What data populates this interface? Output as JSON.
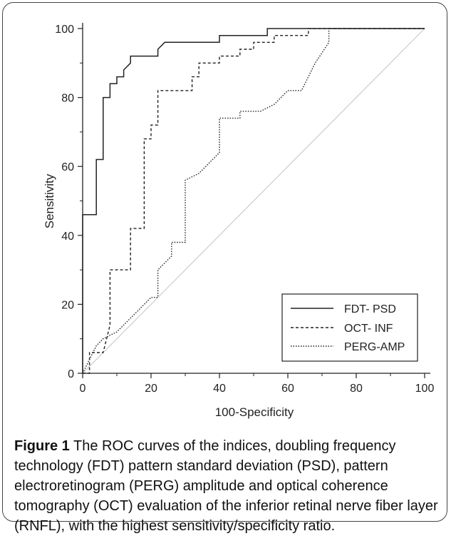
{
  "chart_data": {
    "type": "line",
    "xlabel": "100-Specificity",
    "ylabel": "Sensitivity",
    "xlim": [
      0,
      100
    ],
    "ylim": [
      0,
      100
    ],
    "xticks": [
      "0",
      "20",
      "40",
      "60",
      "80",
      "100"
    ],
    "yticks": [
      "0",
      "20",
      "40",
      "60",
      "80",
      "100"
    ],
    "legend_position": "bottom-right",
    "series": [
      {
        "name": "FDT- PSD",
        "style": "solid",
        "points": [
          [
            0,
            0
          ],
          [
            0,
            46
          ],
          [
            4,
            46
          ],
          [
            4,
            62
          ],
          [
            6,
            62
          ],
          [
            6,
            80
          ],
          [
            8,
            80
          ],
          [
            8,
            84
          ],
          [
            10,
            84
          ],
          [
            10,
            86
          ],
          [
            12,
            86
          ],
          [
            12,
            88
          ],
          [
            14,
            90
          ],
          [
            14,
            92
          ],
          [
            22,
            92
          ],
          [
            22,
            94
          ],
          [
            24,
            96
          ],
          [
            40,
            96
          ],
          [
            40,
            98
          ],
          [
            54,
            98
          ],
          [
            54,
            100
          ],
          [
            100,
            100
          ]
        ]
      },
      {
        "name": "OCT- INF",
        "style": "dashed",
        "points": [
          [
            0,
            0
          ],
          [
            2,
            0
          ],
          [
            2,
            6
          ],
          [
            6,
            6
          ],
          [
            8,
            14
          ],
          [
            8,
            30
          ],
          [
            14,
            30
          ],
          [
            14,
            42
          ],
          [
            18,
            42
          ],
          [
            18,
            68
          ],
          [
            20,
            68
          ],
          [
            20,
            72
          ],
          [
            22,
            72
          ],
          [
            22,
            82
          ],
          [
            32,
            82
          ],
          [
            32,
            86
          ],
          [
            34,
            86
          ],
          [
            34,
            90
          ],
          [
            40,
            90
          ],
          [
            40,
            92
          ],
          [
            46,
            92
          ],
          [
            46,
            94
          ],
          [
            50,
            94
          ],
          [
            50,
            96
          ],
          [
            56,
            96
          ],
          [
            56,
            98
          ],
          [
            66,
            98
          ],
          [
            66,
            100
          ],
          [
            100,
            100
          ]
        ]
      },
      {
        "name": "PERG-AMP",
        "style": "dotted",
        "points": [
          [
            0,
            0
          ],
          [
            2,
            4
          ],
          [
            4,
            8
          ],
          [
            6,
            10
          ],
          [
            10,
            12
          ],
          [
            12,
            14
          ],
          [
            14,
            16
          ],
          [
            16,
            18
          ],
          [
            18,
            20
          ],
          [
            20,
            22
          ],
          [
            22,
            22
          ],
          [
            22,
            30
          ],
          [
            26,
            34
          ],
          [
            26,
            38
          ],
          [
            30,
            38
          ],
          [
            30,
            56
          ],
          [
            34,
            58
          ],
          [
            36,
            60
          ],
          [
            38,
            62
          ],
          [
            40,
            64
          ],
          [
            40,
            74
          ],
          [
            46,
            74
          ],
          [
            46,
            76
          ],
          [
            52,
            76
          ],
          [
            56,
            78
          ],
          [
            60,
            82
          ],
          [
            64,
            82
          ],
          [
            66,
            86
          ],
          [
            68,
            90
          ],
          [
            72,
            96
          ],
          [
            72,
            100
          ],
          [
            100,
            100
          ]
        ]
      },
      {
        "name": "",
        "style": "diagonal",
        "points": [
          [
            0,
            0
          ],
          [
            100,
            100
          ]
        ]
      }
    ]
  },
  "caption": {
    "label": "Figure 1",
    "text": "The ROC curves of the indices, doubling frequency technology (FDT) pattern standard deviation (PSD), pattern electroretinogram (PERG) amplitude and optical coherence tomography (OCT) evaluation of the inferior retinal nerve fiber layer (RNFL), with the highest sensitivity/specificity ratio."
  }
}
